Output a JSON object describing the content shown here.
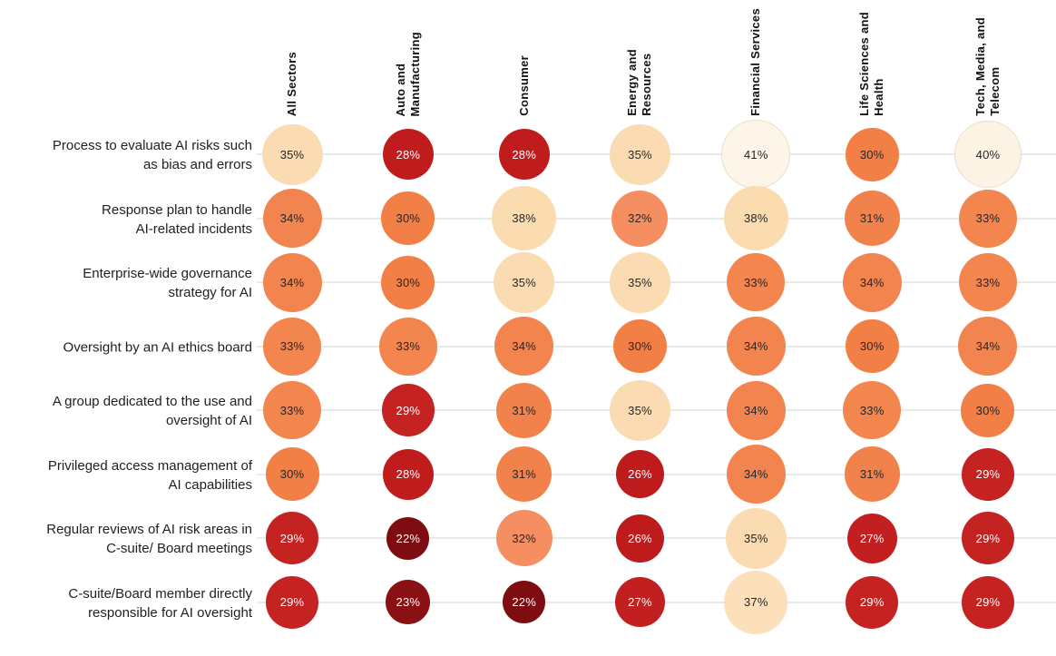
{
  "chart_data": {
    "type": "heatmap",
    "title": "",
    "columns": [
      "All Sectors",
      "Auto and\nManufacturing",
      "Consumer",
      "Energy and\nResources",
      "Financial Services",
      "Life Sciences and\nHealth",
      "Tech, Media, and\nTelecom"
    ],
    "rows": [
      {
        "label": "Process to evaluate AI risks such\nas bias and errors",
        "values": [
          35,
          28,
          28,
          35,
          41,
          30,
          40
        ]
      },
      {
        "label": "Response plan to handle\nAI-related incidents",
        "values": [
          34,
          30,
          38,
          32,
          38,
          31,
          33
        ]
      },
      {
        "label": "Enterprise-wide governance\nstrategy for AI",
        "values": [
          34,
          30,
          35,
          35,
          33,
          34,
          33
        ]
      },
      {
        "label": "Oversight by an AI ethics board",
        "values": [
          33,
          33,
          34,
          30,
          34,
          30,
          34
        ]
      },
      {
        "label": "A group dedicated to the use and\noversight of AI",
        "values": [
          33,
          29,
          31,
          35,
          34,
          33,
          30
        ]
      },
      {
        "label": "Privileged access management of\nAI capabilities",
        "values": [
          30,
          28,
          31,
          26,
          34,
          31,
          29
        ]
      },
      {
        "label": "Regular reviews of AI risk areas in\nC-suite/ Board meetings",
        "values": [
          29,
          22,
          32,
          26,
          35,
          27,
          29
        ]
      },
      {
        "label": "C-suite/Board member directly\nresponsible for AI oversight",
        "values": [
          29,
          23,
          22,
          27,
          37,
          29,
          29
        ]
      }
    ],
    "value_suffix": "%",
    "value_range": [
      22,
      41
    ],
    "bubble_size_by_value": true,
    "color_scale": {
      "22": "#7d0d10",
      "23": "#891013",
      "26": "#bd1b1c",
      "27": "#c21f20",
      "28": "#c01c1d",
      "29": "#c52222",
      "30": "#f27f46",
      "31": "#f2824c",
      "32": "#f58e60",
      "33": "#f3854f",
      "34": "#f28450",
      "35": "#fbdcb2",
      "37": "#fcdfbb",
      "38": "#fbdcb1",
      "40": "#fdf3e4",
      "41": "#fef5e9"
    },
    "text_colors": {
      "on_dark": "#ffffff",
      "on_light": "#262626"
    },
    "white_text_max_value": 29,
    "light_bubble_border_min_value": 40,
    "light_bubble_border_color": "#e9dfcf",
    "grid_line_color": "#e9e9e9",
    "background": "#ffffff"
  }
}
